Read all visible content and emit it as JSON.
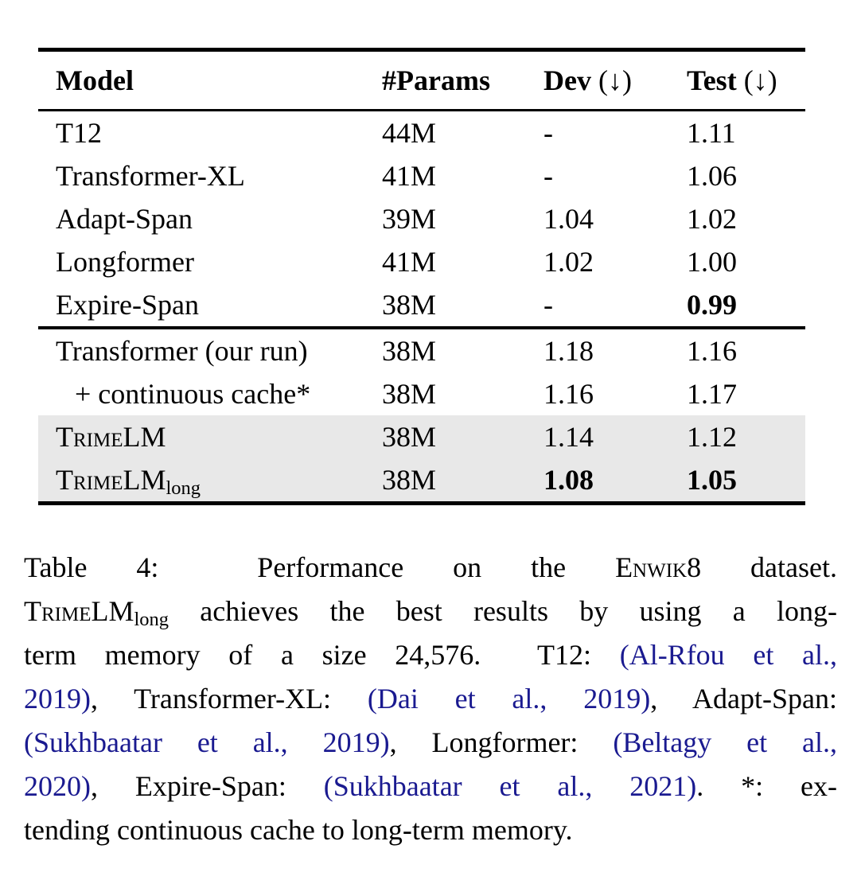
{
  "colors": {
    "citation_link": "#1a1a90",
    "row_shading": "#e8e8e8",
    "text": "#000000",
    "background": "#ffffff"
  },
  "table": {
    "header": {
      "model": "Model",
      "params": "#Params",
      "dev": {
        "label": "Dev",
        "suffix": "(↓)"
      },
      "test": {
        "label": "Test",
        "suffix": "(↓)"
      }
    },
    "rows": [
      {
        "model": "T12",
        "params": "44M",
        "dev": "-",
        "test": "1.11"
      },
      {
        "model": "Transformer-XL",
        "params": "41M",
        "dev": "-",
        "test": "1.06"
      },
      {
        "model": "Adapt-Span",
        "params": "39M",
        "dev": "1.04",
        "test": "1.02"
      },
      {
        "model": "Longformer",
        "params": "41M",
        "dev": "1.02",
        "test": "1.00"
      },
      {
        "model": "Expire-Span",
        "params": "38M",
        "dev": "-",
        "test": "0.99",
        "test_bold": true
      },
      {
        "model": "Transformer (our run)",
        "params": "38M",
        "dev": "1.18",
        "test": "1.16",
        "section_start": true
      },
      {
        "model": "+ continuous cache*",
        "params": "38M",
        "dev": "1.16",
        "test": "1.17",
        "indent": true
      },
      {
        "model": "TrimeLM",
        "params": "38M",
        "dev": "1.14",
        "test": "1.12",
        "sc": true,
        "shaded": true
      },
      {
        "model": "TrimeLM",
        "sub": "long",
        "params": "38M",
        "dev": "1.08",
        "test": "1.05",
        "sc": true,
        "shaded": true,
        "dev_bold": true,
        "test_bold": true
      }
    ]
  },
  "caption": {
    "lines": [
      {
        "segs": [
          {
            "t": "Table 4:  Performance on the "
          },
          {
            "t": "Enwik8",
            "sc": true
          },
          {
            "t": " dataset."
          }
        ]
      },
      {
        "segs": [
          {
            "t": "TrimeLM",
            "sc": true
          },
          {
            "t": "long",
            "sub": true
          },
          {
            "t": " achieves the best results by using a long-"
          }
        ]
      },
      {
        "segs": [
          {
            "t": "term memory of a size 24,576.  T12: "
          },
          {
            "t": "(Al-Rfou et al.,",
            "link": true
          }
        ]
      },
      {
        "segs": [
          {
            "t": "2019)",
            "link": true
          },
          {
            "t": ", Transformer-XL: "
          },
          {
            "t": "(Dai et al., 2019)",
            "link": true
          },
          {
            "t": ", Adapt-Span:"
          }
        ]
      },
      {
        "segs": [
          {
            "t": "(Sukhbaatar et al., 2019)",
            "link": true
          },
          {
            "t": ", Longformer: "
          },
          {
            "t": "(Beltagy et al.,",
            "link": true
          }
        ]
      },
      {
        "segs": [
          {
            "t": "2020)",
            "link": true
          },
          {
            "t": ", Expire-Span: "
          },
          {
            "t": "(Sukhbaatar et al., 2021)",
            "link": true
          },
          {
            "t": ". *: ex-"
          }
        ]
      },
      {
        "segs": [
          {
            "t": "tending continuous cache to long-term memory."
          }
        ],
        "last": true
      }
    ]
  }
}
